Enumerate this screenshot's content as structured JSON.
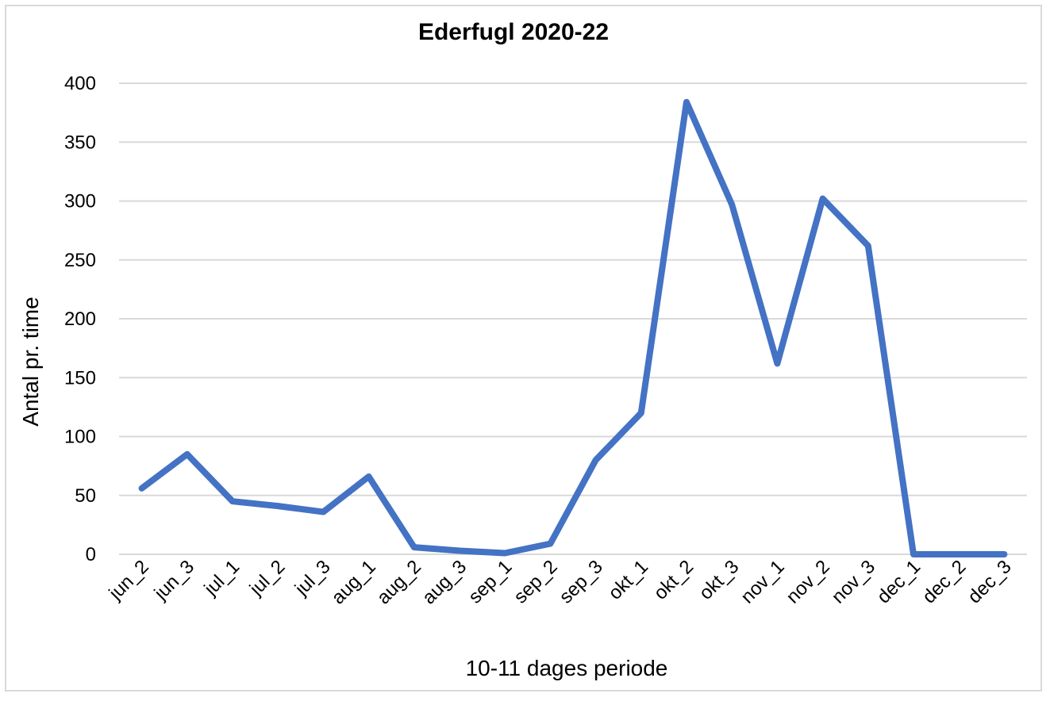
{
  "chart_data": {
    "type": "line",
    "title": "Ederfugl 2020-22",
    "xlabel": "10-11 dages periode",
    "ylabel": "Antal pr. time",
    "categories": [
      "jun_2",
      "jun_3",
      "jul_1",
      "jul_2",
      "jul_3",
      "aug_1",
      "aug_2",
      "aug_3",
      "sep_1",
      "sep_2",
      "sep_3",
      "okt_1",
      "okt_2",
      "okt_3",
      "nov_1",
      "nov_2",
      "nov_3",
      "dec_1",
      "dec_2",
      "dec_3"
    ],
    "series": [
      {
        "values": [
          56,
          85,
          45,
          41,
          36,
          66,
          6,
          3,
          1,
          9,
          80,
          120,
          384,
          297,
          162,
          302,
          262,
          0,
          0,
          0
        ],
        "color": "#4472c4"
      }
    ],
    "ylim": [
      0,
      400
    ],
    "yticks": [
      0,
      50,
      100,
      150,
      200,
      250,
      300,
      350,
      400
    ],
    "grid": true,
    "legend": "none"
  }
}
